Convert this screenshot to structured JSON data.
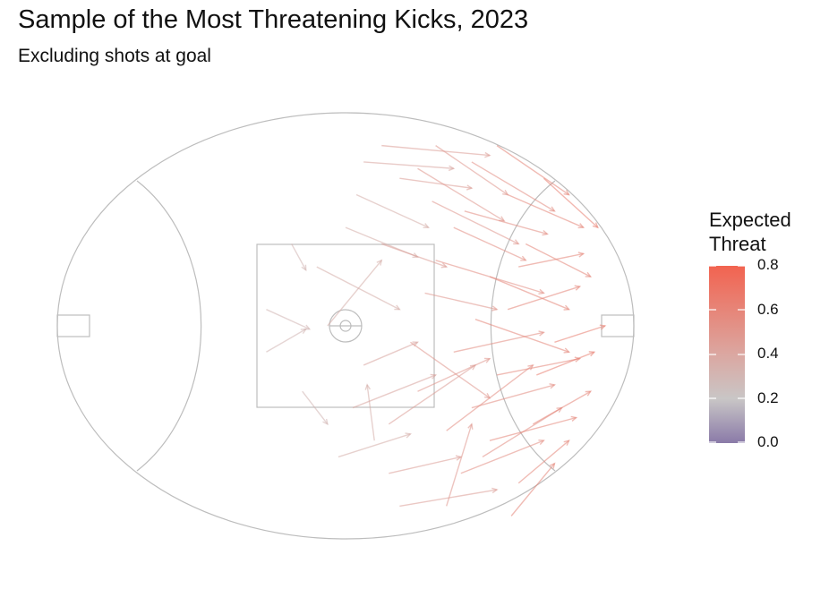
{
  "title": "Sample of the Most Threatening Kicks, 2023",
  "subtitle": "Excluding shots at goal",
  "chart_data": {
    "type": "vector_field",
    "description_of_marks": "Arrows from kick origin to kick destination on an oval football field, colored by Expected Threat",
    "field": {
      "x_range": [
        -80,
        80
      ],
      "y_range": [
        -65,
        65
      ]
    },
    "legend": {
      "title_lines": [
        "Expected",
        "Threat"
      ],
      "scale": [
        0.0,
        0.8
      ],
      "ticks": [
        {
          "value": 0.8,
          "label": "0.8"
        },
        {
          "value": 0.6,
          "label": "0.6"
        },
        {
          "value": 0.4,
          "label": "0.4"
        },
        {
          "value": 0.2,
          "label": "0.2"
        },
        {
          "value": 0.0,
          "label": "0.0"
        }
      ],
      "colors": {
        "low": "#8a7aa8",
        "mid": "#c9c3c3",
        "high": "#f26350"
      }
    },
    "kicks": [
      {
        "x1": -22,
        "y1": 5,
        "x2": -10,
        "y2": -1,
        "xt": 0.3
      },
      {
        "x1": -12,
        "y1": -20,
        "x2": -5,
        "y2": -30,
        "xt": 0.3
      },
      {
        "x1": -15,
        "y1": 25,
        "x2": -11,
        "y2": 17,
        "xt": 0.3
      },
      {
        "x1": -22,
        "y1": -8,
        "x2": -11,
        "y2": -1,
        "xt": 0.3
      },
      {
        "x1": -5,
        "y1": 0,
        "x2": 10,
        "y2": 20,
        "xt": 0.35
      },
      {
        "x1": 3,
        "y1": 40,
        "x2": 23,
        "y2": 30,
        "xt": 0.35
      },
      {
        "x1": 0,
        "y1": 30,
        "x2": 20,
        "y2": 21,
        "xt": 0.35
      },
      {
        "x1": 8,
        "y1": -35,
        "x2": 6,
        "y2": -18,
        "xt": 0.35
      },
      {
        "x1": -2,
        "y1": -40,
        "x2": 18,
        "y2": -33,
        "xt": 0.35
      },
      {
        "x1": 5,
        "y1": -12,
        "x2": 20,
        "y2": -5,
        "xt": 0.4
      },
      {
        "x1": 10,
        "y1": 25,
        "x2": 28,
        "y2": 18,
        "xt": 0.45
      },
      {
        "x1": 15,
        "y1": 45,
        "x2": 35,
        "y2": 42,
        "xt": 0.45
      },
      {
        "x1": 12,
        "y1": -45,
        "x2": 32,
        "y2": -40,
        "xt": 0.45
      },
      {
        "x1": 20,
        "y1": -20,
        "x2": 40,
        "y2": -10,
        "xt": 0.5
      },
      {
        "x1": 22,
        "y1": 10,
        "x2": 42,
        "y2": 5,
        "xt": 0.5
      },
      {
        "x1": 25,
        "y1": 55,
        "x2": 45,
        "y2": 40,
        "xt": 0.5
      },
      {
        "x1": 28,
        "y1": -55,
        "x2": 35,
        "y2": -30,
        "xt": 0.5
      },
      {
        "x1": 30,
        "y1": 30,
        "x2": 50,
        "y2": 20,
        "xt": 0.55
      },
      {
        "x1": 30,
        "y1": -8,
        "x2": 55,
        "y2": -2,
        "xt": 0.55
      },
      {
        "x1": 35,
        "y1": 50,
        "x2": 58,
        "y2": 35,
        "xt": 0.55
      },
      {
        "x1": 38,
        "y1": -40,
        "x2": 60,
        "y2": -25,
        "xt": 0.55
      },
      {
        "x1": 40,
        "y1": 15,
        "x2": 62,
        "y2": 5,
        "xt": 0.6
      },
      {
        "x1": 42,
        "y1": -15,
        "x2": 65,
        "y2": -10,
        "xt": 0.6
      },
      {
        "x1": 45,
        "y1": 40,
        "x2": 66,
        "y2": 30,
        "xt": 0.6
      },
      {
        "x1": 48,
        "y1": -48,
        "x2": 62,
        "y2": -35,
        "xt": 0.6
      },
      {
        "x1": 10,
        "y1": 55,
        "x2": 40,
        "y2": 52,
        "xt": 0.45
      },
      {
        "x1": 18,
        "y1": -5,
        "x2": 40,
        "y2": -22,
        "xt": 0.5
      },
      {
        "x1": 24,
        "y1": 38,
        "x2": 48,
        "y2": 25,
        "xt": 0.5
      },
      {
        "x1": 35,
        "y1": -25,
        "x2": 58,
        "y2": -18,
        "xt": 0.55
      },
      {
        "x1": 45,
        "y1": 5,
        "x2": 65,
        "y2": 12,
        "xt": 0.6
      },
      {
        "x1": 50,
        "y1": 25,
        "x2": 68,
        "y2": 15,
        "xt": 0.6
      },
      {
        "x1": 52,
        "y1": -30,
        "x2": 68,
        "y2": -20,
        "xt": 0.6
      },
      {
        "x1": 55,
        "y1": 45,
        "x2": 70,
        "y2": 30,
        "xt": 0.65
      },
      {
        "x1": 58,
        "y1": -5,
        "x2": 72,
        "y2": 0,
        "xt": 0.65
      },
      {
        "x1": -8,
        "y1": 18,
        "x2": 15,
        "y2": 5,
        "xt": 0.35
      },
      {
        "x1": 2,
        "y1": -25,
        "x2": 25,
        "y2": -15,
        "xt": 0.4
      },
      {
        "x1": 5,
        "y1": 50,
        "x2": 30,
        "y2": 48,
        "xt": 0.4
      },
      {
        "x1": 15,
        "y1": -55,
        "x2": 42,
        "y2": -50,
        "xt": 0.45
      },
      {
        "x1": 25,
        "y1": 20,
        "x2": 55,
        "y2": 10,
        "xt": 0.55
      },
      {
        "x1": 32,
        "y1": -45,
        "x2": 55,
        "y2": -35,
        "xt": 0.55
      },
      {
        "x1": 36,
        "y1": 2,
        "x2": 62,
        "y2": -8,
        "xt": 0.6
      },
      {
        "x1": 42,
        "y1": 55,
        "x2": 62,
        "y2": 40,
        "xt": 0.6
      },
      {
        "x1": 46,
        "y1": -58,
        "x2": 58,
        "y2": -42,
        "xt": 0.6
      },
      {
        "x1": 12,
        "y1": -30,
        "x2": 36,
        "y2": -12,
        "xt": 0.45
      },
      {
        "x1": 20,
        "y1": 48,
        "x2": 44,
        "y2": 32,
        "xt": 0.5
      },
      {
        "x1": 28,
        "y1": -32,
        "x2": 52,
        "y2": -12,
        "xt": 0.55
      },
      {
        "x1": 33,
        "y1": 35,
        "x2": 56,
        "y2": 28,
        "xt": 0.55
      },
      {
        "x1": 40,
        "y1": -35,
        "x2": 64,
        "y2": -28,
        "xt": 0.6
      },
      {
        "x1": 48,
        "y1": 18,
        "x2": 66,
        "y2": 22,
        "xt": 0.6
      },
      {
        "x1": 53,
        "y1": -15,
        "x2": 69,
        "y2": -8,
        "xt": 0.65
      }
    ]
  }
}
